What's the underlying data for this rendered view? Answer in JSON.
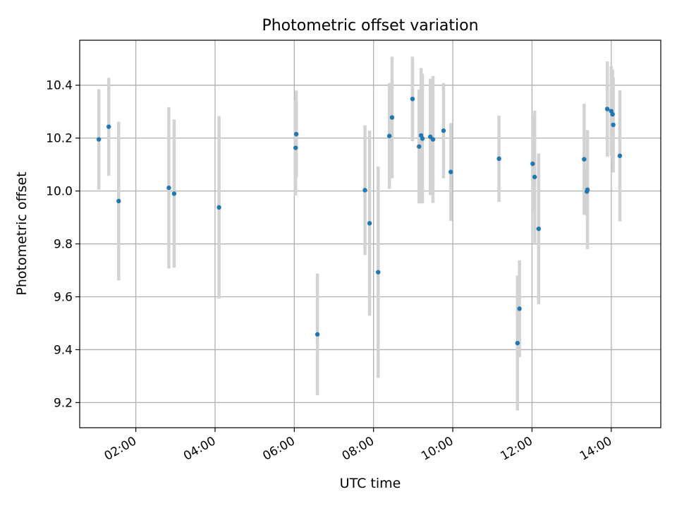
{
  "chart_data": {
    "type": "scatter",
    "title": "Photometric offset variation",
    "xlabel": "UTC time",
    "ylabel": "Photometric offset",
    "x_ticks": [
      "02:00",
      "04:00",
      "06:00",
      "08:00",
      "10:00",
      "12:00",
      "14:00"
    ],
    "y_ticks": [
      "9.2",
      "9.4",
      "9.6",
      "9.8",
      "10.0",
      "10.2",
      "10.4"
    ],
    "xlim": [
      "00:35",
      "15:15"
    ],
    "ylim": [
      9.105,
      10.57
    ],
    "grid": true,
    "colors": {
      "point": "#1f77b4",
      "errorbar": "#d3d3d3",
      "grid": "#b0b0b0"
    },
    "points": [
      {
        "x": "01:04",
        "y": 10.195,
        "err": 0.19
      },
      {
        "x": "01:19",
        "y": 10.243,
        "err": 0.185
      },
      {
        "x": "01:34",
        "y": 9.962,
        "err": 0.3
      },
      {
        "x": "02:50",
        "y": 10.012,
        "err": 0.305
      },
      {
        "x": "02:58",
        "y": 9.99,
        "err": 0.28
      },
      {
        "x": "04:06",
        "y": 9.938,
        "err": 0.345
      },
      {
        "x": "06:02",
        "y": 10.163,
        "err": 0.18
      },
      {
        "x": "06:03",
        "y": 10.215,
        "err": 0.165
      },
      {
        "x": "06:35",
        "y": 9.458,
        "err": 0.23
      },
      {
        "x": "07:47",
        "y": 10.003,
        "err": 0.245
      },
      {
        "x": "07:54",
        "y": 9.878,
        "err": 0.35
      },
      {
        "x": "08:07",
        "y": 9.693,
        "err": 0.4
      },
      {
        "x": "08:24",
        "y": 10.208,
        "err": 0.2
      },
      {
        "x": "08:28",
        "y": 10.278,
        "err": 0.23
      },
      {
        "x": "08:59",
        "y": 10.348,
        "err": 0.16
      },
      {
        "x": "09:09",
        "y": 10.168,
        "err": 0.215
      },
      {
        "x": "09:12",
        "y": 10.21,
        "err": 0.255
      },
      {
        "x": "09:14",
        "y": 10.198,
        "err": 0.245
      },
      {
        "x": "09:26",
        "y": 10.205,
        "err": 0.22
      },
      {
        "x": "09:30",
        "y": 10.195,
        "err": 0.24
      },
      {
        "x": "09:46",
        "y": 10.228,
        "err": 0.18
      },
      {
        "x": "09:57",
        "y": 10.072,
        "err": 0.185
      },
      {
        "x": "11:10",
        "y": 10.122,
        "err": 0.163
      },
      {
        "x": "11:38",
        "y": 9.425,
        "err": 0.255
      },
      {
        "x": "11:41",
        "y": 9.555,
        "err": 0.183
      },
      {
        "x": "12:01",
        "y": 10.103,
        "err": 0.18
      },
      {
        "x": "12:04",
        "y": 10.053,
        "err": 0.25
      },
      {
        "x": "12:10",
        "y": 9.857,
        "err": 0.285
      },
      {
        "x": "13:19",
        "y": 10.12,
        "err": 0.21
      },
      {
        "x": "13:23",
        "y": 9.998,
        "err": 0.09
      },
      {
        "x": "13:24",
        "y": 10.005,
        "err": 0.225
      },
      {
        "x": "13:54",
        "y": 10.31,
        "err": 0.18
      },
      {
        "x": "14:00",
        "y": 10.302,
        "err": 0.17
      },
      {
        "x": "14:02",
        "y": 10.29,
        "err": 0.17
      },
      {
        "x": "14:03",
        "y": 10.25,
        "err": 0.18
      },
      {
        "x": "14:13",
        "y": 10.133,
        "err": 0.248
      }
    ]
  }
}
